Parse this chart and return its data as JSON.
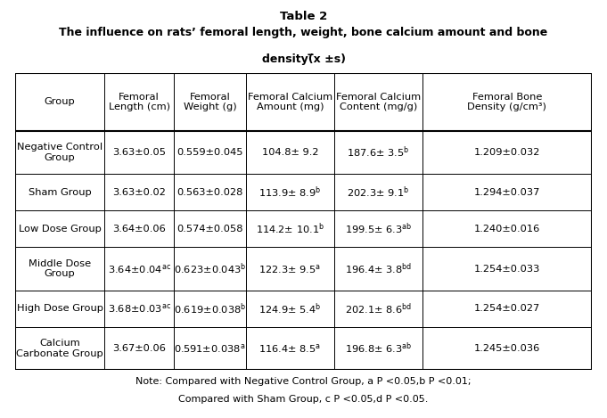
{
  "title_line1": "Table 2",
  "title_line2": "The influence on rats’ femoral length, weight, bone calcium amount and bone",
  "title_line3": "density(̅x ±s)",
  "col_headers": [
    "Group",
    "Femoral\nLength (cm)",
    "Femoral\nWeight (g)",
    "Femoral Calcium\nAmount (mg)",
    "Femoral Calcium\nContent (mg/g)",
    "Femoral Bone\nDensity (g/cm³)"
  ],
  "rows": [
    {
      "group": "Negative Control\nGroup",
      "c1": "3.63±0.05",
      "c2": "0.559±0.045",
      "c3": "104.8± 9.2",
      "c4": "187.6± 3.5",
      "c5": "1.209±0.032"
    },
    {
      "group": "Sham Group",
      "c1": "3.63±0.02",
      "c2": "0.563±0.028",
      "c3": "113.9± 8.9",
      "c4": "202.3± 9.1",
      "c5": "1.294±0.037"
    },
    {
      "group": "Low Dose Group",
      "c1": "3.64±0.06",
      "c2": "0.574±0.058",
      "c3": "114.2± 10.1",
      "c4": "199.5± 6.3",
      "c5": "1.240±0.016"
    },
    {
      "group": "Middle Dose\nGroup",
      "c1": "3.64±0.04",
      "c2": "0.623±0.043",
      "c3": "122.3± 9.5",
      "c4": "196.4± 3.8",
      "c5": "1.254±0.033"
    },
    {
      "group": "High Dose Group",
      "c1": "3.68±0.03",
      "c2": "0.619±0.038",
      "c3": "124.9± 5.4",
      "c4": "202.1± 8.6",
      "c5": "1.254±0.027"
    },
    {
      "group": "Calcium\nCarbonate Group",
      "c1": "3.67±0.06",
      "c2": "0.591±0.038",
      "c3": "116.4± 8.5",
      "c4": "196.8± 6.3",
      "c5": "1.245±0.036"
    }
  ],
  "superscripts": {
    "r0c5": "b",
    "r1c4": "b",
    "r1c5": "b",
    "r2c4": "b",
    "r2c5": "ab",
    "r3c2": "ac",
    "r3c3": "b",
    "r3c4": "a",
    "r3c5": "bd",
    "r4c2": "ac",
    "r4c3": "b",
    "r4c4": "b",
    "r4c5": "bd",
    "r5c3": "a",
    "r5c4": "a",
    "r5c5": "ab"
  },
  "note_line1": "Note: Compared with Negative Control Group, a P <0.05,b P <0.01;",
  "note_line2": "Compared with Sham Group, c P <0.05,d P <0.05.",
  "background_color": "#ffffff",
  "text_color": "#000000"
}
